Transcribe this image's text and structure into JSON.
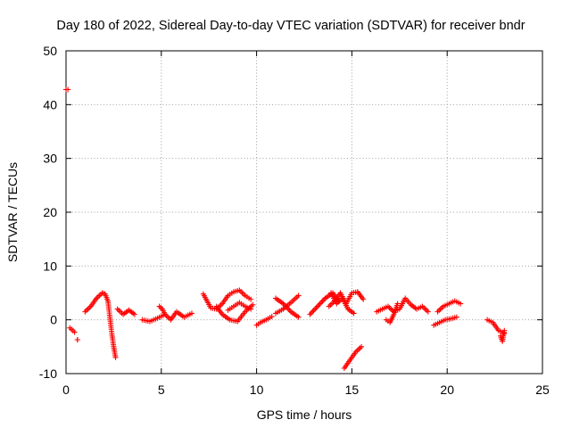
{
  "chart_data": {
    "type": "scatter",
    "title": "Day 180 of 2022, Sidereal Day-to-day VTEC variation (SDTVAR) for receiver bndr",
    "xlabel": "GPS time / hours",
    "ylabel": "SDTVAR / TECUs",
    "xlim": [
      0,
      25
    ],
    "ylim": [
      -10,
      50
    ],
    "x_ticks": [
      "0",
      "5",
      "10",
      "15",
      "20",
      "25"
    ],
    "y_ticks": [
      "-10",
      "0",
      "10",
      "20",
      "30",
      "40",
      "50"
    ],
    "x_tick_values": [
      0,
      5,
      10,
      15,
      20,
      25
    ],
    "y_tick_values": [
      -10,
      0,
      10,
      20,
      30,
      40,
      50
    ],
    "grid": true,
    "marker": "+",
    "color": "#ff0000",
    "series": [
      {
        "name": "bndr",
        "segments": [
          {
            "x": [
              0.0,
              0.1
            ],
            "y": [
              42.8,
              42.8
            ]
          },
          {
            "x": [
              0.2,
              0.45
            ],
            "y": [
              -1.5,
              -2.3
            ]
          },
          {
            "x": [
              0.6,
              0.6
            ],
            "y": [
              -3.7,
              -3.7
            ]
          },
          {
            "x": [
              1.0,
              1.3,
              1.6,
              1.9,
              2.05,
              2.2
            ],
            "y": [
              1.5,
              2.5,
              4.0,
              5.0,
              4.8,
              3.5
            ]
          },
          {
            "x": [
              2.2,
              2.3,
              2.4,
              2.5,
              2.55,
              2.6
            ],
            "y": [
              3.5,
              0.5,
              -2.5,
              -5.0,
              -6.0,
              -7.0
            ]
          },
          {
            "x": [
              2.7,
              3.0,
              3.3,
              3.6
            ],
            "y": [
              2.0,
              1.0,
              1.8,
              1.0
            ]
          },
          {
            "x": [
              4.0,
              4.4,
              4.8,
              5.2,
              5.5,
              5.8,
              6.2,
              6.6
            ],
            "y": [
              0.0,
              -0.3,
              0.3,
              1.0,
              0.0,
              1.5,
              0.5,
              1.2
            ]
          },
          {
            "x": [
              4.9,
              5.05,
              5.2
            ],
            "y": [
              2.5,
              2.0,
              1.0
            ]
          },
          {
            "x": [
              7.2,
              7.4,
              7.6,
              7.9,
              8.2,
              8.5,
              8.8,
              9.1,
              9.4,
              9.7
            ],
            "y": [
              4.8,
              3.5,
              2.2,
              2.0,
              3.0,
              4.5,
              5.2,
              5.5,
              4.5,
              3.8
            ]
          },
          {
            "x": [
              7.9,
              8.2,
              8.6,
              9.0,
              9.4,
              9.8
            ],
            "y": [
              2.5,
              1.0,
              0.0,
              -0.3,
              1.5,
              2.8
            ]
          },
          {
            "x": [
              8.5,
              8.8,
              9.1,
              9.4,
              9.7
            ],
            "y": [
              1.8,
              2.5,
              3.2,
              2.5,
              2.0
            ]
          },
          {
            "x": [
              10.0,
              10.2,
              10.5,
              10.8
            ],
            "y": [
              -1.0,
              -0.5,
              0.0,
              0.6
            ]
          },
          {
            "x": [
              11.0,
              11.4,
              11.8,
              12.2
            ],
            "y": [
              4.0,
              3.0,
              1.5,
              0.5
            ]
          },
          {
            "x": [
              11.0,
              11.4,
              11.8,
              12.2
            ],
            "y": [
              1.2,
              2.0,
              3.2,
              4.5
            ]
          },
          {
            "x": [
              12.8,
              13.2,
              13.6,
              14.0,
              14.3
            ],
            "y": [
              1.0,
              2.5,
              4.0,
              5.0,
              3.5
            ]
          },
          {
            "x": [
              13.8,
              14.1,
              14.4,
              14.7,
              15.0,
              15.3,
              15.6
            ],
            "y": [
              2.5,
              3.5,
              5.0,
              3.0,
              5.0,
              5.2,
              3.8
            ]
          },
          {
            "x": [
              13.9,
              14.2,
              14.5,
              14.8,
              15.1
            ],
            "y": [
              5.0,
              3.0,
              4.0,
              2.0,
              1.2
            ]
          },
          {
            "x": [
              14.6,
              14.9,
              15.2,
              15.5
            ],
            "y": [
              -9.0,
              -7.5,
              -6.0,
              -5.0
            ]
          },
          {
            "x": [
              16.3,
              16.6,
              16.9,
              17.2,
              17.5,
              17.8,
              18.1,
              18.4,
              18.7,
              19.0
            ],
            "y": [
              1.5,
              2.0,
              2.5,
              1.5,
              2.0,
              4.0,
              2.8,
              2.0,
              2.5,
              1.5
            ]
          },
          {
            "x": [
              16.8,
              17.0,
              17.2,
              17.4
            ],
            "y": [
              0.0,
              -0.5,
              1.0,
              3.0
            ]
          },
          {
            "x": [
              19.3,
              19.6,
              19.9,
              20.2,
              20.5
            ],
            "y": [
              -1.0,
              -0.5,
              0.0,
              0.2,
              0.5
            ]
          },
          {
            "x": [
              19.5,
              19.8,
              20.1,
              20.4,
              20.7
            ],
            "y": [
              1.5,
              2.5,
              3.0,
              3.5,
              3.0
            ]
          },
          {
            "x": [
              22.1,
              22.4,
              22.7,
              23.0
            ],
            "y": [
              0.0,
              -0.5,
              -2.0,
              -2.5
            ]
          },
          {
            "x": [
              22.8,
              22.9,
              23.0
            ],
            "y": [
              -3.0,
              -4.0,
              -2.0
            ]
          }
        ]
      }
    ]
  }
}
